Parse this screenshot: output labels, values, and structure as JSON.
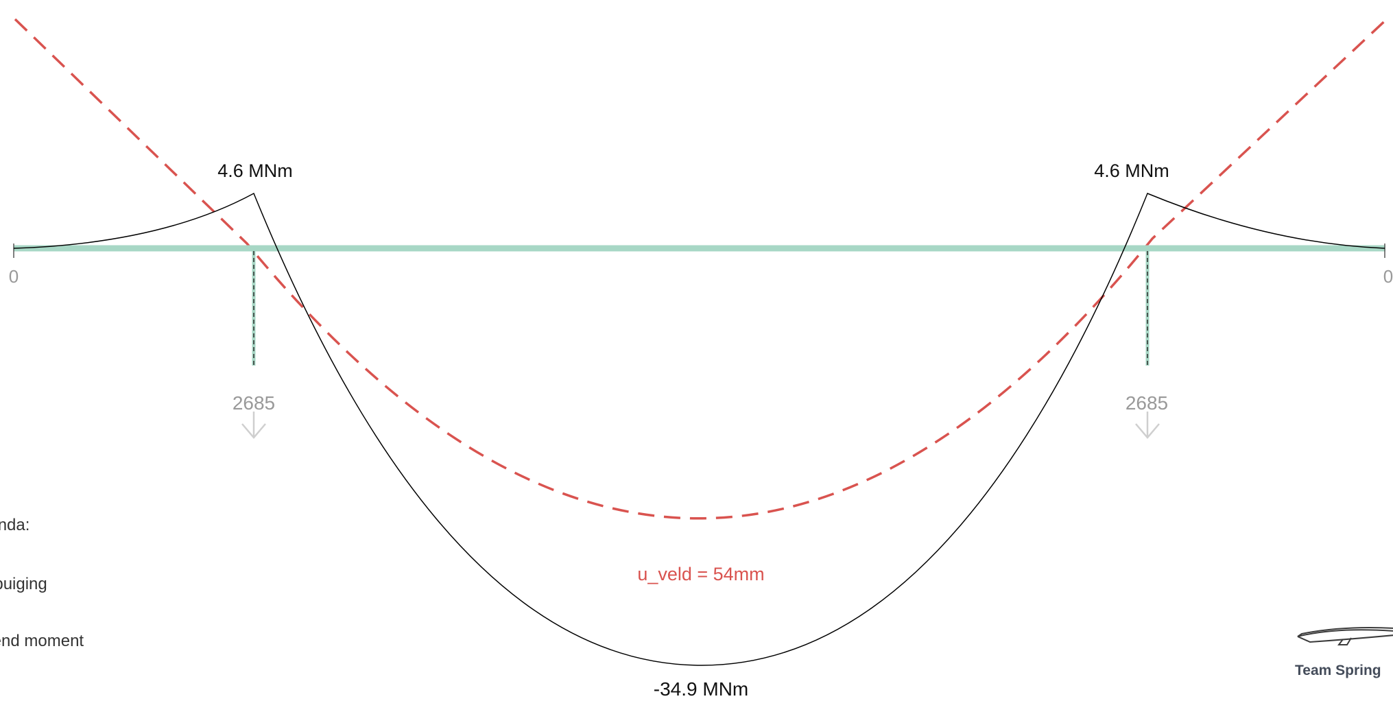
{
  "beam": {
    "color": "#a7d7c5",
    "left_end_label": "0",
    "right_end_label": "0"
  },
  "supports": [
    {
      "id": "left",
      "reaction_label": "2685"
    },
    {
      "id": "right",
      "reaction_label": "2685"
    }
  ],
  "moment": {
    "color": "#000000",
    "support_label_left": "4.6 MNm",
    "support_label_right": "4.6 MNm",
    "field_label": "-34.9 MNm"
  },
  "deflection": {
    "color": "#d9534f",
    "field_label": "u_veld = 54mm"
  },
  "legend": {
    "title": "genda:",
    "item_deflection": "orbuiging",
    "item_moment": "igend moment"
  },
  "brand": {
    "name": "Team Spring",
    "logo_icon": "spring-logo-icon"
  }
}
